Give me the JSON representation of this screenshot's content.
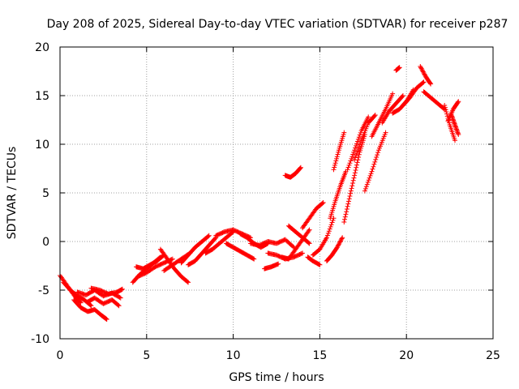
{
  "chart_data": {
    "type": "scatter",
    "title": "Day 208 of 2025, Sidereal Day-to-day VTEC variation (SDTVAR) for receiver p287",
    "xlabel": "GPS time / hours",
    "ylabel": "SDTVAR / TECUs",
    "xlim": [
      0,
      25
    ],
    "ylim": [
      -10,
      20
    ],
    "xticks": [
      0,
      5,
      10,
      15,
      20,
      25
    ],
    "yticks": [
      -10,
      -5,
      0,
      5,
      10,
      15,
      20
    ],
    "grid": true,
    "marker": "+",
    "series_color": "#ff0000",
    "arcs": [
      {
        "x": [
          0.0,
          0.4,
          0.8,
          1.2
        ],
        "y": [
          -3.5,
          -4.5,
          -5.5,
          -6.3
        ]
      },
      {
        "x": [
          0.2,
          0.6,
          1.0,
          1.4,
          1.8
        ],
        "y": [
          -4.2,
          -5.0,
          -5.6,
          -6.0,
          -6.6
        ]
      },
      {
        "x": [
          0.8,
          1.2,
          1.6,
          2.0,
          2.4,
          2.7
        ],
        "y": [
          -6.0,
          -6.8,
          -7.2,
          -7.0,
          -7.6,
          -8.0
        ]
      },
      {
        "x": [
          1.0,
          1.5,
          2.0,
          2.5,
          3.0,
          3.5
        ],
        "y": [
          -5.2,
          -5.5,
          -5.0,
          -5.6,
          -5.3,
          -5.8
        ]
      },
      {
        "x": [
          1.6,
          2.0,
          2.5,
          3.0,
          3.4
        ],
        "y": [
          -6.2,
          -5.8,
          -6.4,
          -6.0,
          -6.6
        ]
      },
      {
        "x": [
          1.8,
          2.3,
          2.8,
          3.3,
          3.6
        ],
        "y": [
          -4.8,
          -5.0,
          -5.4,
          -5.2,
          -4.9
        ]
      },
      {
        "x": [
          4.2,
          4.6,
          5.0,
          5.4,
          5.8
        ],
        "y": [
          -4.2,
          -3.4,
          -2.8,
          -2.2,
          -1.6
        ]
      },
      {
        "x": [
          4.4,
          4.8,
          5.2,
          5.6,
          6.0
        ],
        "y": [
          -2.6,
          -2.8,
          -2.4,
          -2.0,
          -1.4
        ]
      },
      {
        "x": [
          4.5,
          5.0,
          5.5,
          6.0,
          6.5
        ],
        "y": [
          -3.6,
          -3.2,
          -2.6,
          -2.2,
          -1.8
        ]
      },
      {
        "x": [
          5.8,
          6.2,
          6.6,
          7.0,
          7.4
        ],
        "y": [
          -0.8,
          -1.8,
          -2.8,
          -3.6,
          -4.2
        ]
      },
      {
        "x": [
          6.0,
          6.5,
          7.0,
          7.5
        ],
        "y": [
          -3.0,
          -2.4,
          -1.8,
          -1.2
        ]
      },
      {
        "x": [
          7.0,
          7.4,
          7.8,
          8.2,
          8.6
        ],
        "y": [
          -2.2,
          -1.4,
          -0.6,
          0.0,
          0.6
        ]
      },
      {
        "x": [
          7.4,
          7.8,
          8.2,
          8.6,
          9.0
        ],
        "y": [
          -2.4,
          -2.0,
          -1.2,
          -0.4,
          0.4
        ]
      },
      {
        "x": [
          8.4,
          8.8,
          9.2,
          9.6,
          10.0
        ],
        "y": [
          -1.2,
          -0.8,
          -0.2,
          0.4,
          1.0
        ]
      },
      {
        "x": [
          9.0,
          9.5,
          10.0,
          10.5,
          11.0
        ],
        "y": [
          0.6,
          1.0,
          1.2,
          0.8,
          0.4
        ]
      },
      {
        "x": [
          9.6,
          10.0,
          10.4,
          10.8,
          11.2
        ],
        "y": [
          -0.2,
          -0.6,
          -1.0,
          -1.4,
          -1.8
        ]
      },
      {
        "x": [
          10.4,
          10.8,
          11.2,
          11.6,
          12.0
        ],
        "y": [
          0.8,
          0.4,
          -0.2,
          -0.6,
          -0.2
        ]
      },
      {
        "x": [
          11.0,
          11.5,
          12.0,
          12.5,
          13.0,
          13.5
        ],
        "y": [
          -0.2,
          -0.4,
          0.0,
          -0.2,
          0.2,
          -0.6
        ]
      },
      {
        "x": [
          11.8,
          12.2,
          12.6
        ],
        "y": [
          -2.8,
          -2.6,
          -2.3
        ]
      },
      {
        "x": [
          12.0,
          12.5,
          13.0,
          13.5,
          14.0
        ],
        "y": [
          -1.2,
          -1.4,
          -1.8,
          -1.6,
          -1.2
        ]
      },
      {
        "x": [
          12.8,
          13.2,
          13.6,
          14.0,
          14.4
        ],
        "y": [
          -1.6,
          -1.8,
          -0.8,
          0.2,
          1.2
        ]
      },
      {
        "x": [
          13.2,
          13.6,
          14.0,
          14.4
        ],
        "y": [
          1.6,
          1.0,
          0.4,
          -0.2
        ]
      },
      {
        "x": [
          13.0,
          13.3,
          13.6,
          13.9
        ],
        "y": [
          6.8,
          6.6,
          7.0,
          7.6
        ]
      },
      {
        "x": [
          14.0,
          14.4,
          14.8,
          15.2
        ],
        "y": [
          1.4,
          2.4,
          3.4,
          4.0
        ]
      },
      {
        "x": [
          14.6,
          15.0,
          15.4,
          15.8
        ],
        "y": [
          -1.4,
          -0.8,
          0.4,
          2.4
        ]
      },
      {
        "x": [
          14.3,
          14.6,
          15.0
        ],
        "y": [
          -1.6,
          -2.0,
          -2.4
        ]
      },
      {
        "x": [
          15.4,
          15.7,
          16.0,
          16.3
        ],
        "y": [
          -2.0,
          -1.4,
          -0.6,
          0.4
        ]
      },
      {
        "x": [
          15.6,
          15.9,
          16.2,
          16.5
        ],
        "y": [
          2.4,
          4.2,
          5.8,
          7.2
        ]
      },
      {
        "x": [
          15.8,
          16.1,
          16.4
        ],
        "y": [
          7.4,
          9.4,
          11.2
        ]
      },
      {
        "x": [
          16.4,
          16.7,
          17.0,
          17.3,
          17.6
        ],
        "y": [
          2.0,
          4.4,
          6.8,
          9.2,
          11.0
        ]
      },
      {
        "x": [
          16.6,
          17.0,
          17.4,
          17.8
        ],
        "y": [
          7.4,
          9.4,
          11.4,
          12.8
        ]
      },
      {
        "x": [
          17.0,
          17.4,
          17.8,
          18.2
        ],
        "y": [
          8.4,
          10.4,
          12.2,
          13.0
        ]
      },
      {
        "x": [
          17.6,
          18.0,
          18.4,
          18.8
        ],
        "y": [
          5.2,
          7.2,
          9.4,
          11.2
        ]
      },
      {
        "x": [
          18.0,
          18.4,
          18.8,
          19.2
        ],
        "y": [
          10.8,
          12.2,
          13.6,
          15.2
        ]
      },
      {
        "x": [
          18.6,
          19.0,
          19.4,
          19.8
        ],
        "y": [
          12.2,
          13.4,
          14.2,
          15.0
        ]
      },
      {
        "x": [
          19.2,
          19.6,
          20.0,
          20.4
        ],
        "y": [
          13.2,
          13.6,
          14.4,
          15.6
        ]
      },
      {
        "x": [
          19.4,
          19.6
        ],
        "y": [
          17.6,
          17.9
        ]
      },
      {
        "x": [
          19.8,
          20.2,
          20.6,
          21.0
        ],
        "y": [
          14.0,
          14.8,
          15.8,
          16.4
        ]
      },
      {
        "x": [
          20.8,
          21.1,
          21.4
        ],
        "y": [
          18.0,
          17.0,
          16.2
        ]
      },
      {
        "x": [
          21.0,
          21.4,
          21.8,
          22.2
        ],
        "y": [
          15.4,
          14.8,
          14.2,
          13.6
        ]
      },
      {
        "x": [
          22.2,
          22.5,
          22.8
        ],
        "y": [
          14.0,
          12.0,
          10.4
        ]
      },
      {
        "x": [
          22.4,
          22.7,
          23.0
        ],
        "y": [
          12.4,
          13.6,
          14.4
        ]
      },
      {
        "x": [
          22.6,
          22.8,
          23.0
        ],
        "y": [
          13.0,
          12.0,
          11.0
        ]
      }
    ]
  }
}
